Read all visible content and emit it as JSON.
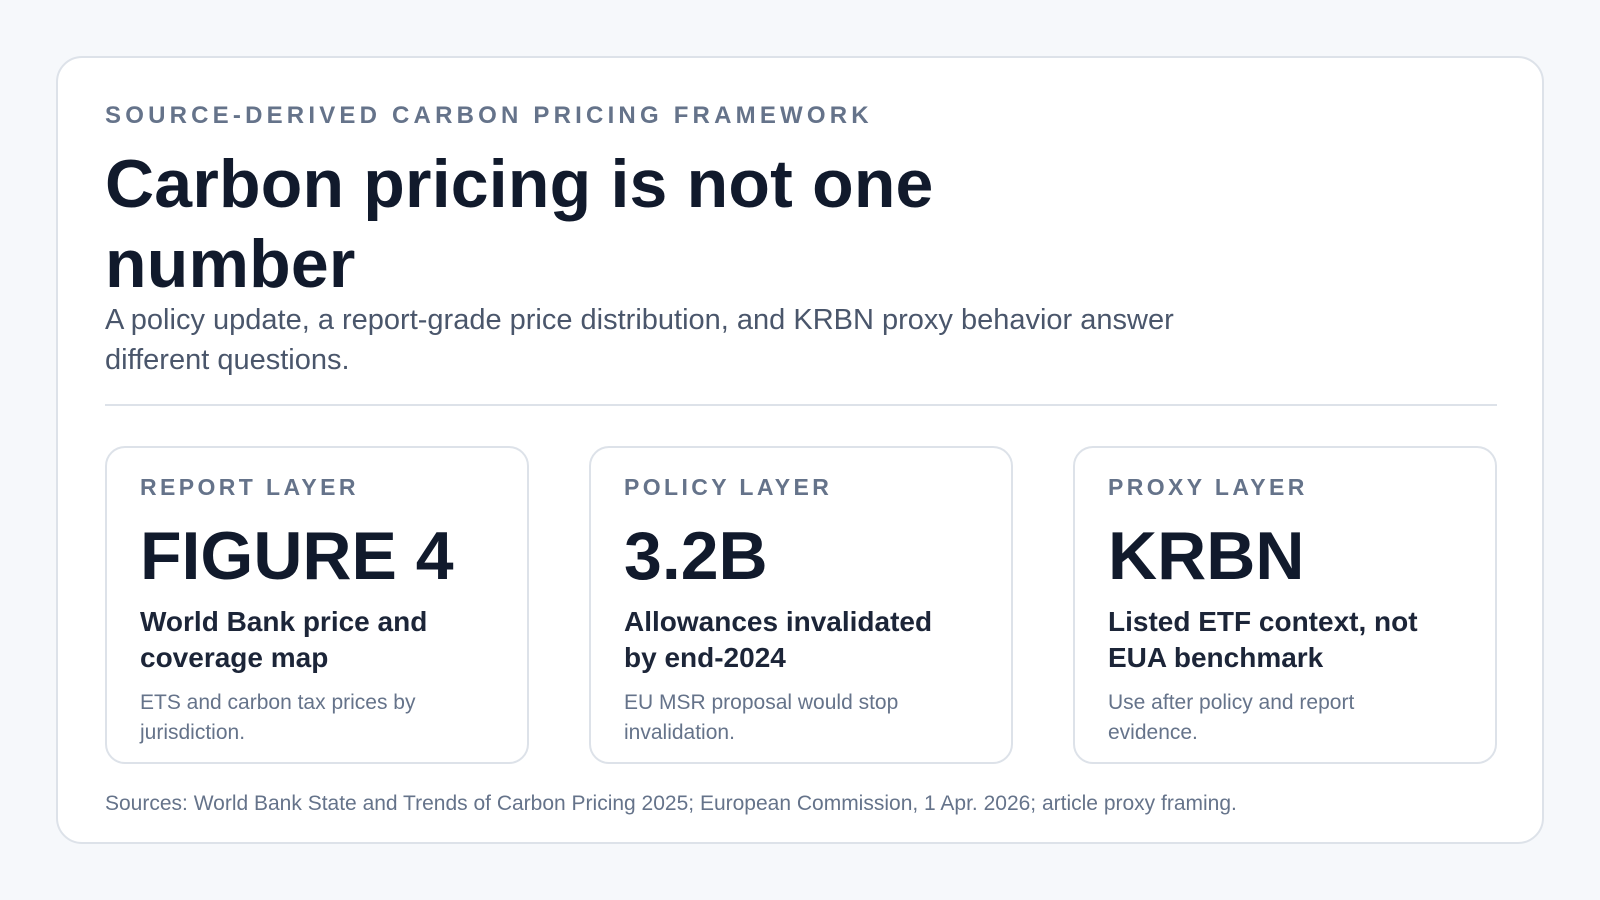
{
  "header": {
    "eyebrow": "SOURCE-DERIVED CARBON PRICING FRAMEWORK",
    "title": "Carbon pricing is not one number",
    "subtitle": "A policy update, a report-grade price distribution, and KRBN proxy behavior answer different questions."
  },
  "layers": [
    {
      "label": "REPORT LAYER",
      "value": "FIGURE 4",
      "headline": "World Bank price and coverage map",
      "note": "ETS and carbon tax prices by jurisdiction."
    },
    {
      "label": "POLICY LAYER",
      "value": "3.2B",
      "headline": "Allowances invalidated by end-2024",
      "note": "EU MSR proposal would stop invalidation."
    },
    {
      "label": "PROXY LAYER",
      "value": "KRBN",
      "headline": "Listed ETF context, not EUA benchmark",
      "note": "Use after policy and report evidence."
    }
  ],
  "footer": {
    "sources": "Sources: World Bank State and Trends of Carbon Pricing 2025; European Commission, 1 Apr. 2026; article proxy framing."
  },
  "colors": {
    "background": "#f6f8fb",
    "card": "#ffffff",
    "border": "#dde2e9",
    "heading": "#111a2c",
    "muted": "#65738a"
  }
}
